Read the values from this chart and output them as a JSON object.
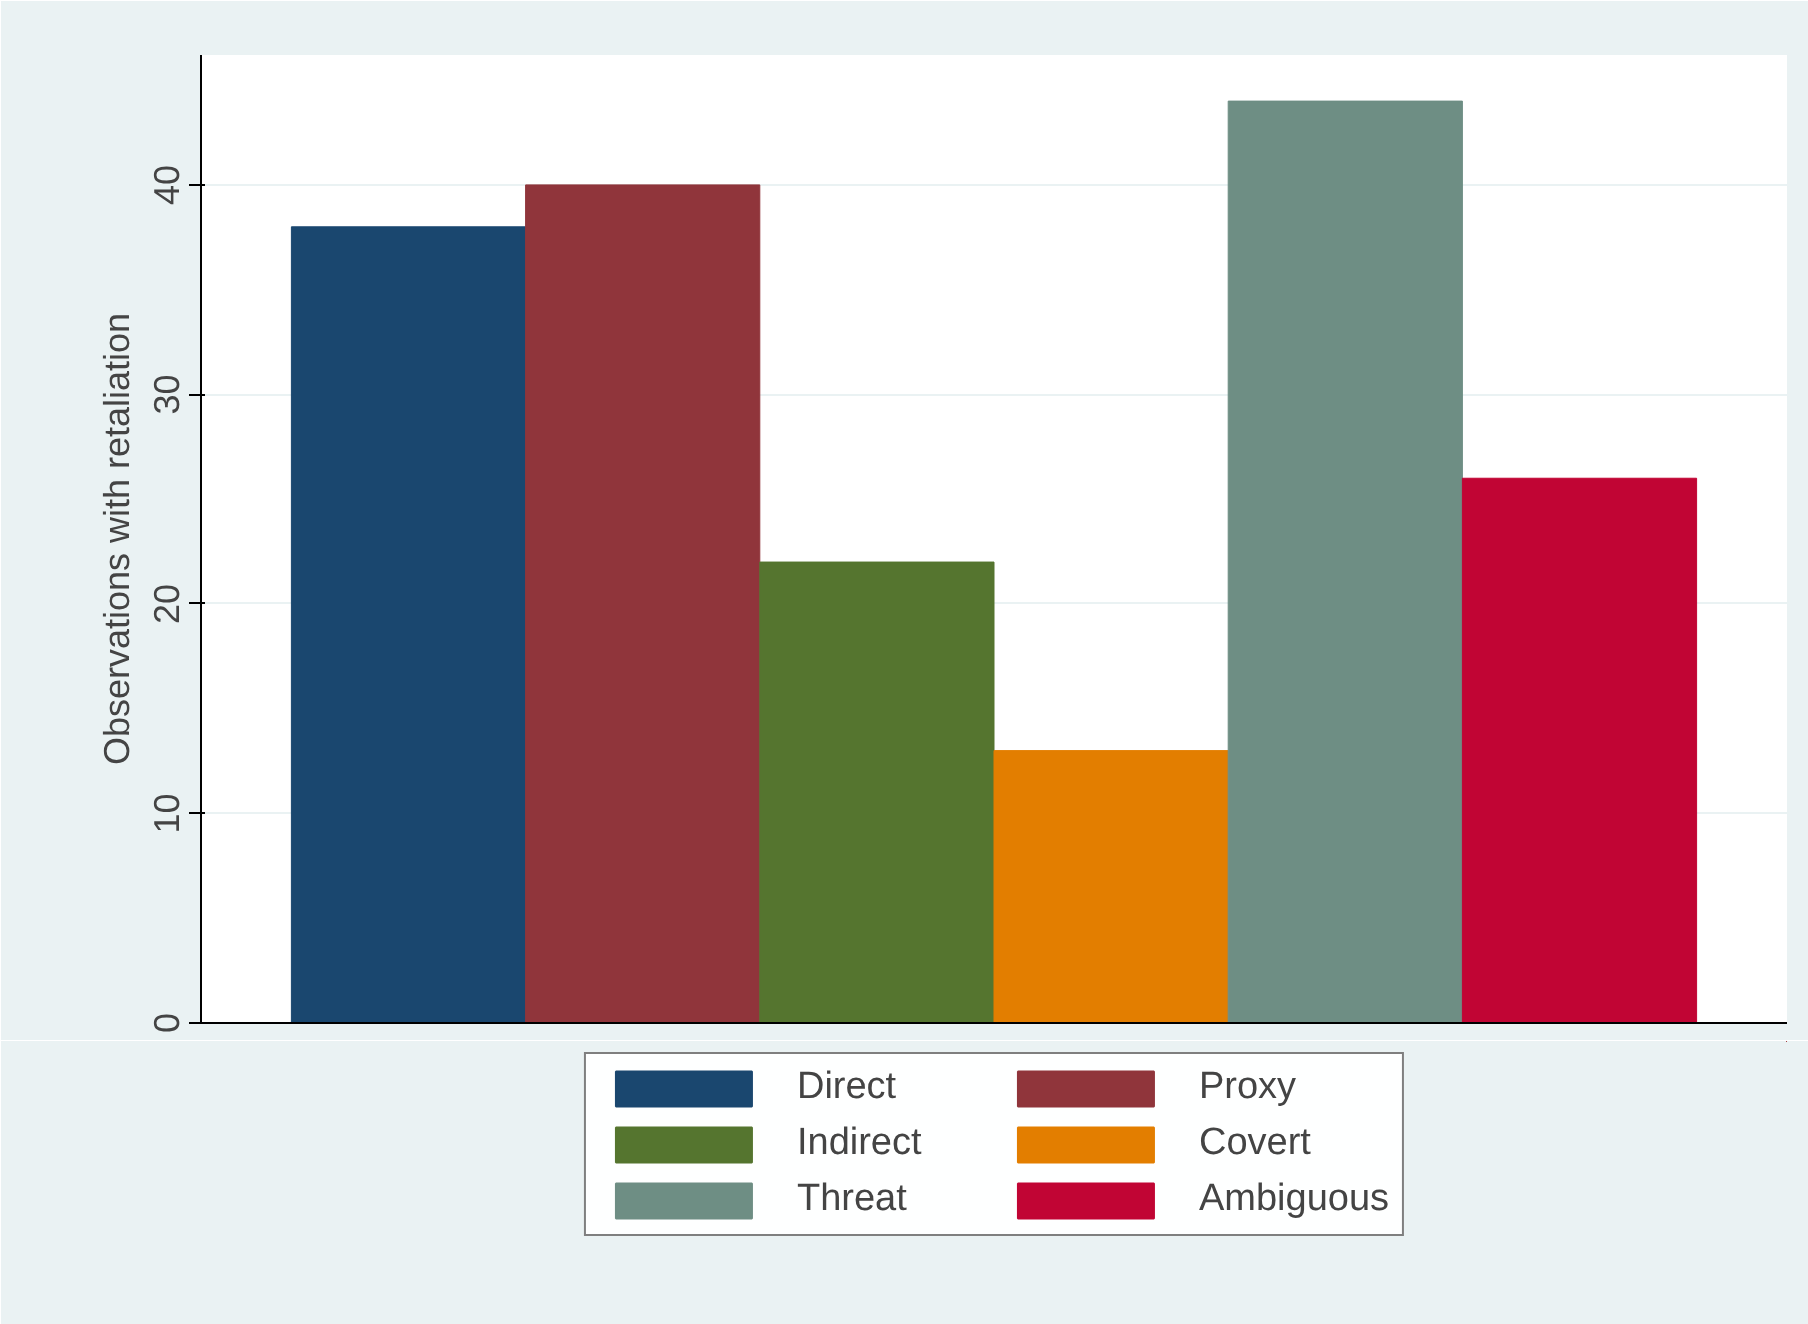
{
  "chart_data": {
    "type": "bar",
    "ylabel": "Observations with retaliation",
    "categories": [
      null
    ],
    "series": [
      {
        "name": "Direct",
        "color": "#1a476f",
        "values": [
          38
        ]
      },
      {
        "name": "Proxy",
        "color": "#90353b",
        "values": [
          40
        ]
      },
      {
        "name": "Indirect",
        "color": "#55752f",
        "values": [
          22
        ]
      },
      {
        "name": "Covert",
        "color": "#e37e00",
        "values": [
          13
        ]
      },
      {
        "name": "Threat",
        "color": "#6e8e84",
        "values": [
          44
        ]
      },
      {
        "name": "Ambiguous",
        "color": "#c10534",
        "values": [
          26
        ]
      }
    ],
    "ylim": [
      0,
      46.2
    ],
    "yticks": [
      0,
      10,
      20,
      30,
      40
    ],
    "grid": "y",
    "legend": "bottom",
    "tick_labels": "y"
  }
}
